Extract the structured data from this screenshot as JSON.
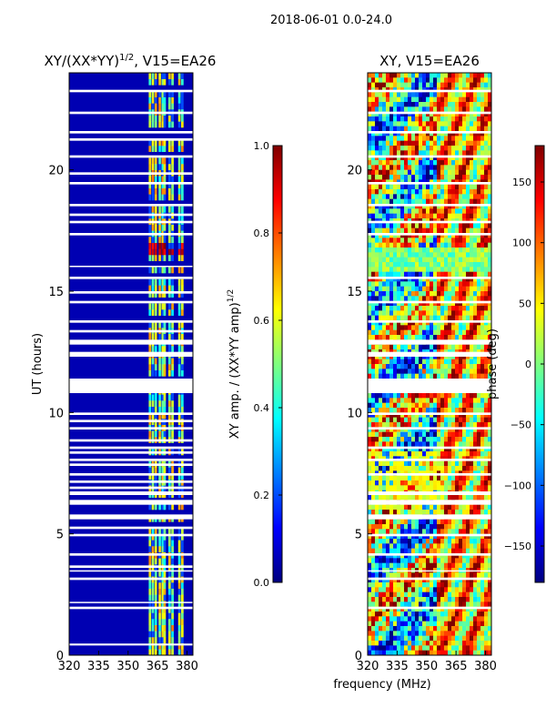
{
  "figure": {
    "suptitle": "2018-06-01 0.0-24.0"
  },
  "colors": {
    "jet_stops": [
      "#00007f",
      "#0000ff",
      "#007fff",
      "#00ffff",
      "#7fff7f",
      "#ffff00",
      "#ff7f00",
      "#ff0000",
      "#7f0000"
    ],
    "gap": "#ffffff"
  },
  "chart_data": [
    {
      "type": "heatmap",
      "title_main": "XY/(XX*YY)",
      "title_sup": "1/2",
      "title_rest": ", V15=EA26",
      "xlabel": "",
      "ylabel": "UT (hours)",
      "xlim": [
        320,
        383
      ],
      "ylim": [
        0,
        24
      ],
      "xticks": [
        320,
        335,
        350,
        365,
        380
      ],
      "yticks": [
        0,
        5,
        10,
        15,
        20
      ],
      "background_value": 0.05,
      "bright_channels_mhz": [
        360.5,
        362.0,
        363.5,
        365.5,
        367.0,
        368.0,
        370.5,
        372.0,
        375.5,
        377.0
      ],
      "flare_hours": [
        16.3,
        17.0
      ],
      "gaps_hours": [
        [
          0.4,
          0.48
        ],
        [
          1.9,
          2.0
        ],
        [
          2.15,
          2.2
        ],
        [
          3.1,
          3.2
        ],
        [
          3.45,
          3.5
        ],
        [
          3.6,
          3.7
        ],
        [
          4.1,
          4.2
        ],
        [
          4.9,
          5.0
        ],
        [
          5.2,
          5.3
        ],
        [
          5.6,
          5.8
        ],
        [
          6.2,
          6.4
        ],
        [
          6.6,
          6.75
        ],
        [
          6.85,
          6.95
        ],
        [
          7.1,
          7.2
        ],
        [
          7.4,
          7.5
        ],
        [
          7.8,
          7.9
        ],
        [
          8.0,
          8.1
        ],
        [
          8.3,
          8.4
        ],
        [
          8.5,
          8.6
        ],
        [
          8.8,
          8.9
        ],
        [
          9.3,
          9.4
        ],
        [
          9.6,
          9.7
        ],
        [
          9.9,
          10.0
        ],
        [
          10.8,
          11.4
        ],
        [
          12.3,
          12.5
        ],
        [
          12.8,
          13.0
        ],
        [
          13.3,
          13.4
        ],
        [
          13.7,
          13.8
        ],
        [
          14.5,
          14.6
        ],
        [
          14.9,
          15.0
        ],
        [
          15.5,
          15.6
        ],
        [
          16.0,
          16.05
        ],
        [
          17.3,
          17.4
        ],
        [
          17.8,
          17.9
        ],
        [
          18.1,
          18.2
        ],
        [
          18.5,
          18.6
        ],
        [
          19.4,
          19.5
        ],
        [
          19.8,
          19.9
        ],
        [
          20.5,
          20.6
        ],
        [
          21.2,
          21.3
        ],
        [
          21.5,
          21.6
        ],
        [
          22.3,
          22.4
        ],
        [
          23.2,
          23.3
        ]
      ]
    },
    {
      "type": "heatmap",
      "title": "XY, V15=EA26",
      "xlabel": "frequency (MHz)",
      "ylabel": "",
      "xlim": [
        320,
        383
      ],
      "ylim": [
        0,
        24
      ],
      "xticks": [
        320,
        335,
        350,
        365,
        380
      ],
      "yticks": [
        0,
        5,
        10,
        15,
        20
      ],
      "gaps_hours": [
        [
          1.9,
          2.0
        ],
        [
          3.1,
          3.2
        ],
        [
          3.45,
          3.5
        ],
        [
          4.1,
          4.2
        ],
        [
          4.9,
          5.0
        ],
        [
          5.6,
          5.8
        ],
        [
          6.2,
          6.4
        ],
        [
          6.6,
          6.75
        ],
        [
          7.4,
          7.5
        ],
        [
          8.0,
          8.1
        ],
        [
          8.5,
          8.6
        ],
        [
          9.3,
          9.4
        ],
        [
          9.9,
          10.0
        ],
        [
          10.8,
          11.4
        ],
        [
          12.3,
          12.5
        ],
        [
          12.8,
          13.0
        ],
        [
          13.7,
          13.8
        ],
        [
          14.5,
          14.6
        ],
        [
          15.5,
          15.6
        ],
        [
          17.3,
          17.4
        ],
        [
          17.8,
          17.9
        ],
        [
          18.5,
          18.6
        ],
        [
          19.4,
          19.5
        ],
        [
          20.5,
          20.6
        ],
        [
          21.5,
          21.6
        ],
        [
          22.3,
          22.4
        ],
        [
          23.2,
          23.3
        ]
      ]
    }
  ],
  "colorbars": [
    {
      "label_main": "XY amp. / (XX*YY amp)",
      "label_sup": "1/2",
      "range": [
        0.0,
        1.0
      ],
      "ticks": [
        "0.0",
        "0.2",
        "0.4",
        "0.6",
        "0.8",
        "1.0"
      ],
      "tick_values": [
        0.0,
        0.2,
        0.4,
        0.6,
        0.8,
        1.0
      ]
    },
    {
      "label": "phase (deg)",
      "range": [
        -180,
        180
      ],
      "ticks": [
        "−150",
        "−100",
        "−50",
        "0",
        "50",
        "100",
        "150"
      ],
      "tick_values": [
        -150,
        -100,
        -50,
        0,
        50,
        100,
        150
      ]
    }
  ]
}
